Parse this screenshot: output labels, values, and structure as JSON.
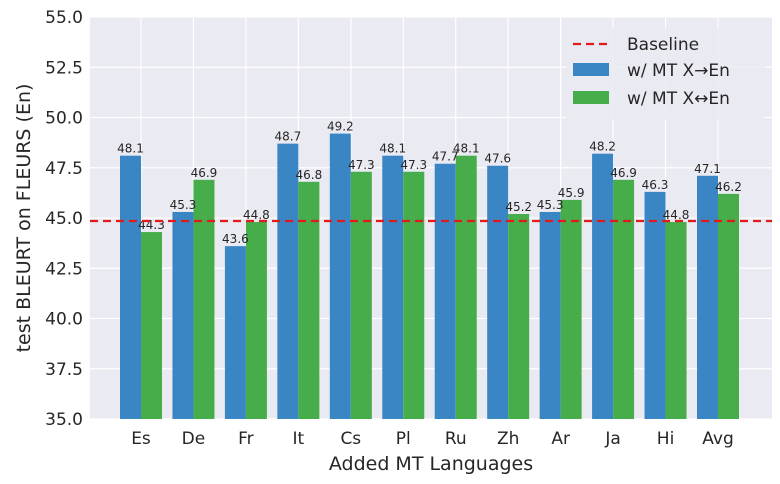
{
  "chart_data": {
    "type": "bar",
    "xlabel": "Added MT Languages",
    "ylabel": "test BLEURT on FLEURS (En)",
    "ylim": [
      35.0,
      55.0
    ],
    "yticks": [
      "35.0",
      "37.5",
      "40.0",
      "42.5",
      "45.0",
      "47.5",
      "50.0",
      "52.5",
      "55.0"
    ],
    "categories": [
      "Es",
      "De",
      "Fr",
      "It",
      "Cs",
      "Pl",
      "Ru",
      "Zh",
      "Ar",
      "Ja",
      "Hi",
      "Avg"
    ],
    "series": [
      {
        "name": "w/ MT X→En",
        "color": "#3a86c5",
        "values": [
          48.1,
          45.3,
          43.6,
          48.7,
          49.2,
          48.1,
          47.7,
          47.6,
          45.3,
          48.2,
          46.3,
          47.1
        ],
        "labels": [
          "48.1",
          "45.3",
          "43.6",
          "48.7",
          "49.2",
          "48.1",
          "47.7",
          "47.6",
          "45.3",
          "48.2",
          "46.3",
          "47.1"
        ]
      },
      {
        "name": "w/ MT X↔En",
        "color": "#46ad4a",
        "values": [
          44.3,
          46.9,
          44.8,
          46.8,
          47.3,
          47.3,
          48.1,
          45.2,
          45.9,
          46.9,
          44.8,
          46.2
        ],
        "labels": [
          "44.3",
          "46.9",
          "44.8",
          "46.8",
          "47.3",
          "47.3",
          "48.1",
          "45.2",
          "45.9",
          "46.9",
          "44.8",
          "46.2"
        ]
      }
    ],
    "baseline": {
      "name": "Baseline",
      "value": 44.85,
      "color": "#e31a1c"
    },
    "grid": true,
    "background": "#eaeaf2",
    "legend": "top-right"
  }
}
